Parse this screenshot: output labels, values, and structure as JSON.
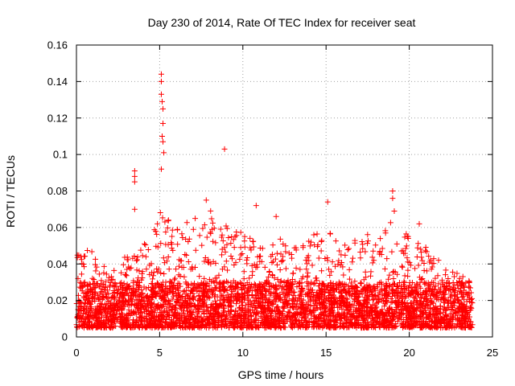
{
  "chart_data": {
    "type": "scatter",
    "title": "Day 230 of 2014, Rate Of TEC Index for receiver seat",
    "xlabel": "GPS time / hours",
    "ylabel": "ROTI / TECUs",
    "xlim": [
      0,
      25
    ],
    "ylim": [
      0,
      0.16
    ],
    "x_ticks": [
      0,
      5,
      10,
      15,
      20,
      25
    ],
    "y_ticks": [
      0,
      0.02,
      0.04,
      0.06,
      0.08,
      0.1,
      0.12,
      0.14,
      0.16
    ],
    "x_tick_labels": [
      "0",
      "5",
      "10",
      "15",
      "20",
      "25"
    ],
    "y_tick_labels": [
      "0",
      "0.02",
      "0.04",
      "0.06",
      "0.08",
      "0.1",
      "0.12",
      "0.14",
      "0.16"
    ],
    "grid": true,
    "marker": "+",
    "series": [
      {
        "name": "ROTI",
        "color": "#ff0000",
        "density": {
          "description": "Dense scatter of ROTI samples 0 to 23.8 h; bulk lies between 0.005 and 0.035 TECU/s with envelope peaks near 0.05-0.075",
          "x_range": [
            0,
            23.8
          ],
          "y_core_range": [
            0.005,
            0.03
          ],
          "envelope_hours": [
            0,
            1,
            2,
            3,
            4,
            5,
            6,
            7,
            8,
            9,
            10,
            11,
            12,
            13,
            14,
            15,
            16,
            17,
            18,
            19,
            20,
            21,
            22,
            23,
            23.8
          ],
          "envelope_values": [
            0.045,
            0.05,
            0.035,
            0.045,
            0.05,
            0.07,
            0.06,
            0.065,
            0.07,
            0.065,
            0.06,
            0.05,
            0.055,
            0.05,
            0.055,
            0.06,
            0.05,
            0.055,
            0.06,
            0.065,
            0.055,
            0.05,
            0.04,
            0.035,
            0.03
          ]
        },
        "points": [
          {
            "x": 3.5,
            "y": 0.091
          },
          {
            "x": 3.5,
            "y": 0.088
          },
          {
            "x": 3.5,
            "y": 0.085
          },
          {
            "x": 3.5,
            "y": 0.07
          },
          {
            "x": 5.1,
            "y": 0.144
          },
          {
            "x": 5.1,
            "y": 0.14
          },
          {
            "x": 5.1,
            "y": 0.133
          },
          {
            "x": 5.15,
            "y": 0.129
          },
          {
            "x": 5.2,
            "y": 0.125
          },
          {
            "x": 5.2,
            "y": 0.117
          },
          {
            "x": 5.15,
            "y": 0.11
          },
          {
            "x": 5.2,
            "y": 0.107
          },
          {
            "x": 5.25,
            "y": 0.101
          },
          {
            "x": 5.1,
            "y": 0.092
          },
          {
            "x": 8.9,
            "y": 0.103
          },
          {
            "x": 7.8,
            "y": 0.075
          },
          {
            "x": 10.8,
            "y": 0.072
          },
          {
            "x": 12.0,
            "y": 0.066
          },
          {
            "x": 15.1,
            "y": 0.074
          },
          {
            "x": 19.0,
            "y": 0.08
          },
          {
            "x": 19.0,
            "y": 0.076
          },
          {
            "x": 19.1,
            "y": 0.069
          },
          {
            "x": 20.6,
            "y": 0.062
          }
        ]
      }
    ]
  }
}
